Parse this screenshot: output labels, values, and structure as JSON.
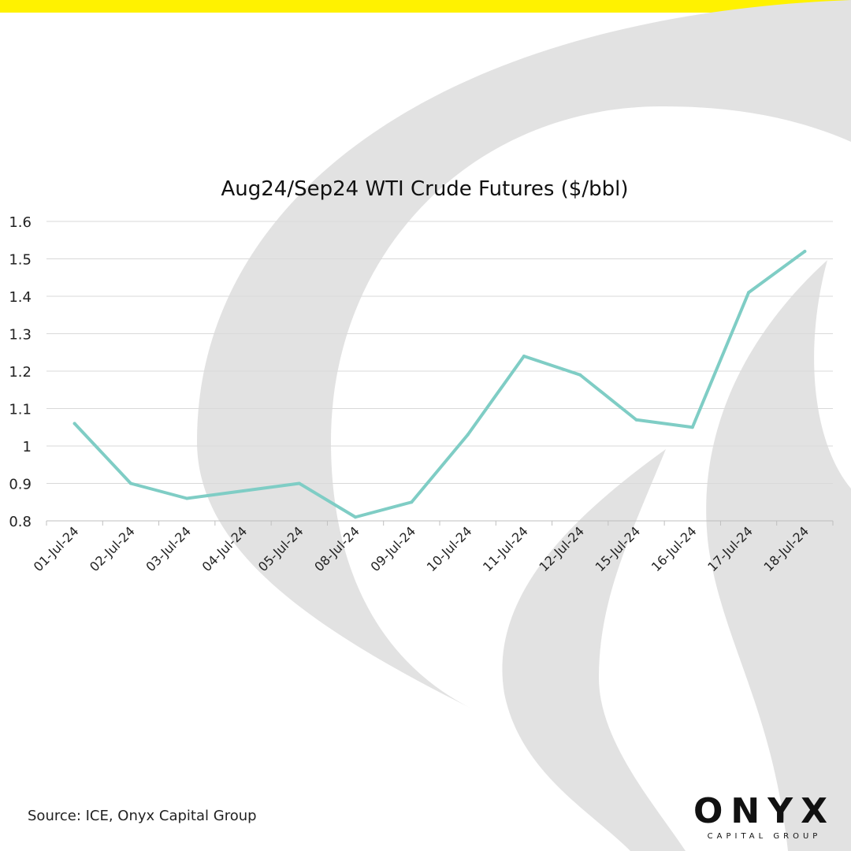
{
  "colors": {
    "accent_bar": "#fff200",
    "background_art": "#e2e2e2",
    "line": "#7fcdc5",
    "grid": "#d9d9d9",
    "text": "#222222"
  },
  "chart_data": {
    "type": "line",
    "title": "Aug24/Sep24 WTI Crude Futures ($/bbl)",
    "xlabel": "",
    "ylabel": "",
    "categories": [
      "01-Jul-24",
      "02-Jul-24",
      "03-Jul-24",
      "04-Jul-24",
      "05-Jul-24",
      "08-Jul-24",
      "09-Jul-24",
      "10-Jul-24",
      "11-Jul-24",
      "12-Jul-24",
      "15-Jul-24",
      "16-Jul-24",
      "17-Jul-24",
      "18-Jul-24"
    ],
    "series": [
      {
        "values": [
          1.06,
          0.9,
          0.86,
          0.88,
          0.9,
          0.81,
          0.85,
          1.03,
          1.24,
          1.19,
          1.07,
          1.05,
          1.41,
          1.52
        ]
      }
    ],
    "ylim": [
      0.8,
      1.6
    ],
    "yticks": [
      0.8,
      0.9,
      1,
      1.1,
      1.2,
      1.3,
      1.4,
      1.5,
      1.6
    ],
    "ytick_labels": [
      "0.8",
      "0.9",
      "1",
      "1.1",
      "1.2",
      "1.3",
      "1.4",
      "1.5",
      "1.6"
    ],
    "grid": true,
    "legend": "none"
  },
  "footer": {
    "source": "Source: ICE, Onyx Capital Group"
  },
  "logo": {
    "word": "ONYX",
    "tagline": "CAPITAL GROUP"
  }
}
